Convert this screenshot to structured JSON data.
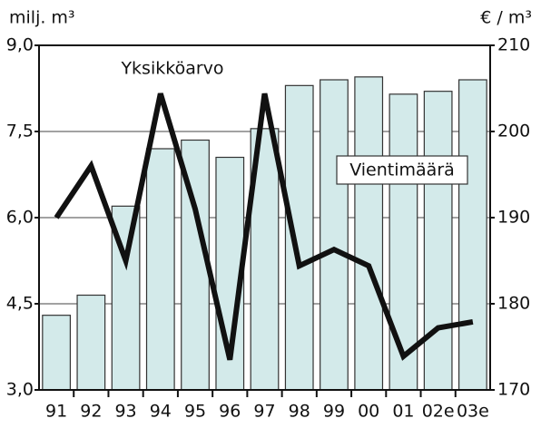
{
  "chart_data": {
    "type": "bar-line",
    "left_axis_label": "milj. m³",
    "right_axis_label": "€ / m³",
    "categories": [
      "91",
      "92",
      "93",
      "94",
      "95",
      "96",
      "97",
      "98",
      "99",
      "00",
      "01",
      "02e",
      "03e"
    ],
    "series": [
      {
        "name": "Vientimäärä",
        "type": "bar",
        "color": "#d3eaea",
        "values": [
          4.3,
          4.65,
          6.2,
          7.2,
          7.35,
          7.05,
          7.55,
          8.3,
          8.4,
          8.45,
          8.15,
          8.2,
          8.4
        ]
      },
      {
        "name": "Yksikköarvo",
        "type": "line",
        "axis": "y2",
        "color": "#111111",
        "values": [
          190,
          196,
          185,
          204.4,
          191,
          173.5,
          204.4,
          184.4,
          186.3,
          184.4,
          173.9,
          177.2,
          177.9
        ]
      }
    ],
    "ylim": [
      3,
      9
    ],
    "yticks": [
      {
        "value": 3,
        "label": "3,0"
      },
      {
        "value": 4.5,
        "label": "4,5"
      },
      {
        "value": 6,
        "label": "6,0"
      },
      {
        "value": 7.5,
        "label": "7,5"
      },
      {
        "value": 9,
        "label": "9,0"
      }
    ],
    "y2lim": [
      170,
      210
    ],
    "y2ticks": [
      170,
      180,
      190,
      200,
      210
    ],
    "grid": true
  }
}
